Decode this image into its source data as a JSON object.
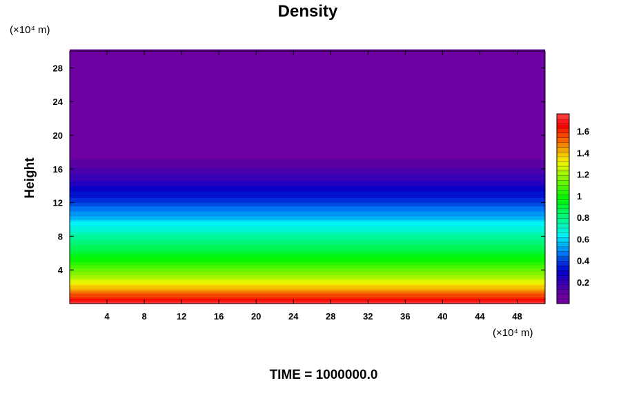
{
  "chart_data": {
    "type": "heatmap",
    "title": "Density",
    "ylabel": "Height",
    "y_unit": "(×10⁴ m)",
    "x_unit": "(×10⁴ m)",
    "footer": "TIME = 1000000.0",
    "xlim": [
      0,
      51
    ],
    "ylim": [
      0,
      30
    ],
    "x_ticks": [
      4,
      8,
      12,
      16,
      20,
      24,
      28,
      32,
      36,
      40,
      44,
      48
    ],
    "x_tick_labels": [
      "4",
      "8",
      "12",
      "16",
      "20",
      "24",
      "28",
      "32",
      "36",
      "40",
      "44",
      "48"
    ],
    "y_ticks": [
      4,
      8,
      12,
      16,
      20,
      24,
      28
    ],
    "y_tick_labels": [
      "4",
      "8",
      "12",
      "16",
      "20",
      "24",
      "28"
    ],
    "colorbar": {
      "min": 0.0,
      "max": 1.76,
      "ticks": [
        0.2,
        0.4,
        0.6,
        0.8,
        1.0,
        1.2,
        1.4,
        1.6
      ],
      "tick_labels": [
        "0.2",
        "0.4",
        "0.6",
        "0.8",
        "1",
        "1.2",
        "1.4",
        "1.6"
      ],
      "levels": 40
    },
    "density_profile": {
      "height": [
        0,
        1,
        2,
        3,
        4,
        6,
        8,
        9.5,
        10.5,
        12,
        14,
        16,
        17.5,
        19,
        19.3,
        30
      ],
      "value": [
        1.76,
        1.56,
        1.39,
        1.24,
        1.12,
        0.92,
        0.76,
        0.64,
        0.52,
        0.4,
        0.26,
        0.14,
        0.07,
        0.03,
        0.0,
        0.0
      ]
    }
  }
}
